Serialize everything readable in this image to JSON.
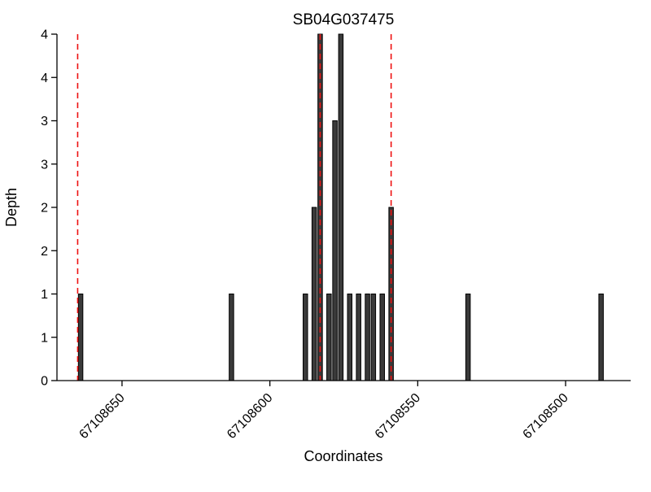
{
  "colors": {
    "bar_fill": "#3a3a3a",
    "bar_edge": "#000000",
    "red_line": "#ee1111",
    "axis": "#000000",
    "text": "#000000"
  },
  "chart_data": {
    "type": "bar",
    "title": "SB04G037475",
    "xlabel": "Coordinates",
    "ylabel": "Depth",
    "x_axis_reversed": true,
    "xlim": [
      67108672,
      67108478
    ],
    "ylim": [
      0,
      4
    ],
    "grid": false,
    "legend": "none",
    "x_ticks": [
      67108650,
      67108600,
      67108550,
      67108500
    ],
    "x_tick_labels": [
      "67108650",
      "67108600",
      "67108550",
      "67108500"
    ],
    "y_ticks": [
      0,
      0.5,
      1,
      1.5,
      2,
      2.5,
      3,
      3.5,
      4
    ],
    "y_tick_labels": [
      "0",
      "1",
      "1",
      "2",
      "2",
      "3",
      "3",
      "4",
      "4"
    ],
    "bars": [
      {
        "x": 67108664,
        "depth": 1
      },
      {
        "x": 67108613,
        "depth": 1
      },
      {
        "x": 67108588,
        "depth": 1
      },
      {
        "x": 67108585,
        "depth": 2
      },
      {
        "x": 67108583,
        "depth": 4
      },
      {
        "x": 67108580,
        "depth": 1
      },
      {
        "x": 67108578,
        "depth": 3
      },
      {
        "x": 67108576,
        "depth": 4
      },
      {
        "x": 67108573,
        "depth": 1
      },
      {
        "x": 67108570,
        "depth": 1
      },
      {
        "x": 67108567,
        "depth": 1
      },
      {
        "x": 67108565,
        "depth": 1
      },
      {
        "x": 67108562,
        "depth": 1
      },
      {
        "x": 67108559,
        "depth": 2
      },
      {
        "x": 67108533,
        "depth": 1
      },
      {
        "x": 67108488,
        "depth": 1
      }
    ],
    "red_dashed_lines": [
      67108665,
      67108583,
      67108559
    ]
  }
}
